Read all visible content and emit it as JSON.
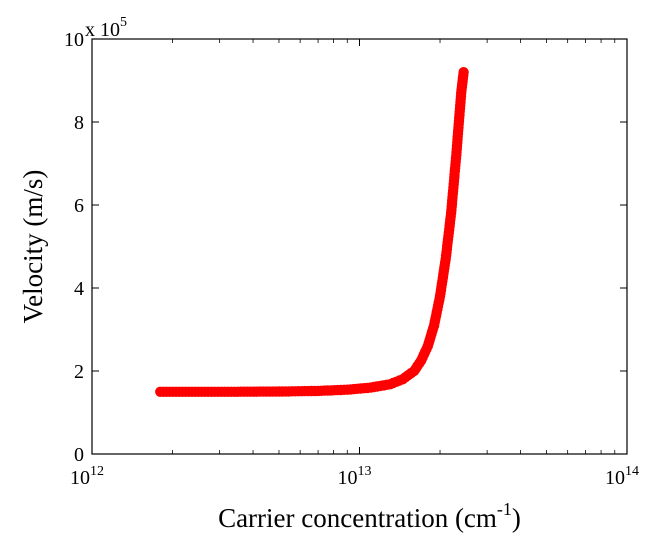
{
  "chart_data": {
    "type": "scatter",
    "xlabel": "Carrier concentration (cm",
    "xlabel_sup": "-1",
    "xlabel_end": ")",
    "ylabel": "Velocity (m/s)",
    "x_scale": "log",
    "xlim": [
      1000000000000.0,
      100000000000000.0
    ],
    "ylim": [
      0,
      1000000
    ],
    "x_ticks": [
      {
        "value": 1000000000000.0,
        "base": "10",
        "exp": "12"
      },
      {
        "value": 10000000000000.0,
        "base": "10",
        "exp": "13"
      },
      {
        "value": 100000000000000.0,
        "base": "10",
        "exp": "14"
      }
    ],
    "y_ticks": [
      {
        "value": 0,
        "label": "0"
      },
      {
        "value": 200000,
        "label": "2"
      },
      {
        "value": 400000,
        "label": "4"
      },
      {
        "value": 600000,
        "label": "6"
      },
      {
        "value": 800000,
        "label": "8"
      },
      {
        "value": 1000000,
        "label": "10"
      }
    ],
    "y_multiplier": {
      "base": "x 10",
      "exp": "5"
    },
    "grid": false,
    "marker_color": "#ff0000",
    "series": [
      {
        "points": [
          [
            1800000000000.0,
            150000
          ],
          [
            2500000000000.0,
            150000
          ],
          [
            3500000000000.0,
            150000
          ],
          [
            5000000000000.0,
            150500
          ],
          [
            7000000000000.0,
            152000
          ],
          [
            9000000000000.0,
            155000
          ],
          [
            11000000000000.0,
            160000
          ],
          [
            13000000000000.0,
            168000
          ],
          [
            14500000000000.0,
            180000
          ],
          [
            16000000000000.0,
            200000
          ],
          [
            17000000000000.0,
            225000
          ],
          [
            18000000000000.0,
            260000
          ],
          [
            19000000000000.0,
            310000
          ],
          [
            20000000000000.0,
            380000
          ],
          [
            21000000000000.0,
            470000
          ],
          [
            22000000000000.0,
            580000
          ],
          [
            23000000000000.0,
            720000
          ],
          [
            24000000000000.0,
            870000
          ],
          [
            24500000000000.0,
            920000
          ]
        ]
      }
    ]
  }
}
